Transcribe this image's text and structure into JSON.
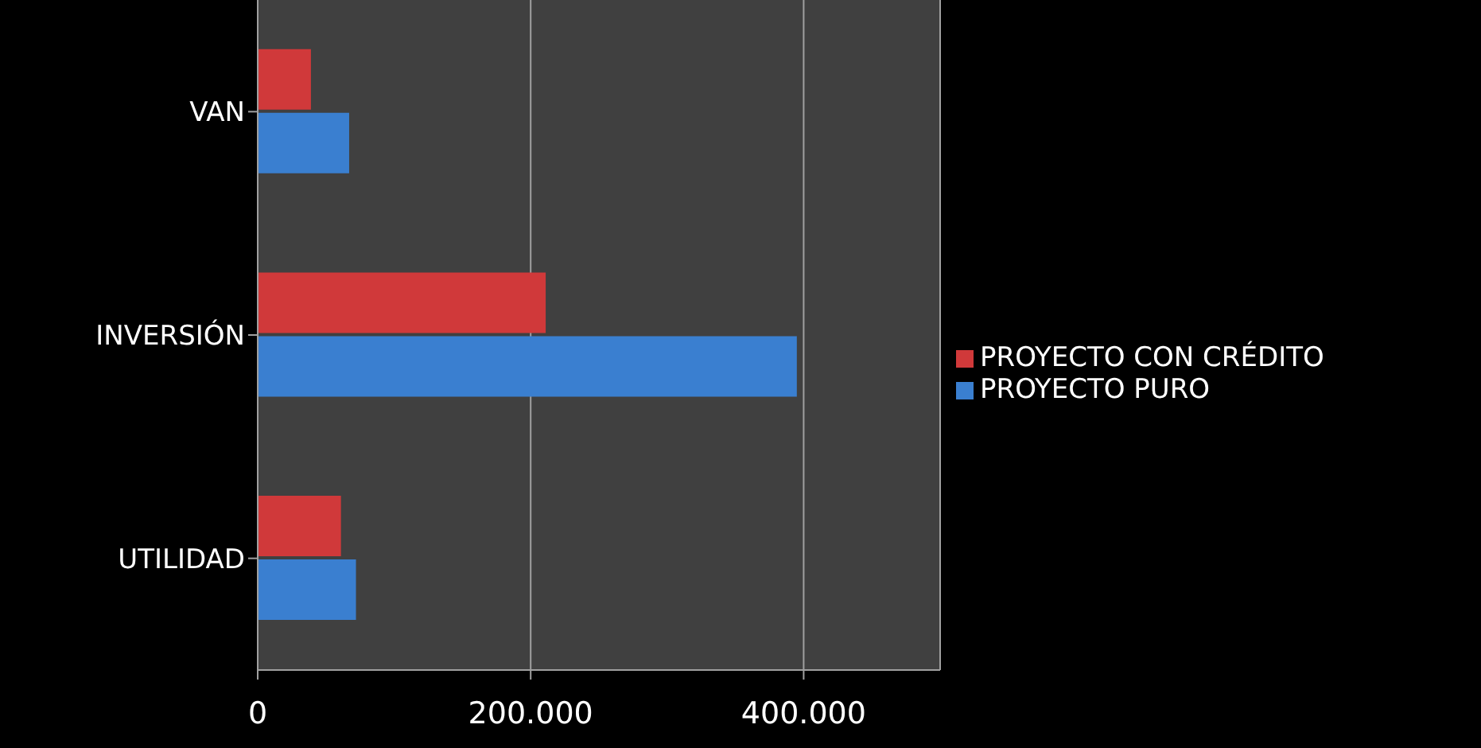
{
  "chart_data": {
    "type": "bar",
    "orientation": "horizontal",
    "categories": [
      "VAN",
      "INVERSIÓN",
      "UTILIDAD"
    ],
    "series": [
      {
        "name": "PROYECTO CON CRÉDITO",
        "color": "#d0393a",
        "values": [
          39000,
          211000,
          61000
        ]
      },
      {
        "name": "PROYECTO PURO",
        "color": "#3a7fd0",
        "values": [
          67000,
          395000,
          72000
        ]
      }
    ],
    "xlim": [
      0,
      500000
    ],
    "xticks": [
      0,
      {
        "value": 200000,
        "label": "200.000"
      },
      {
        "value": 400000,
        "label": "400.000"
      }
    ],
    "grid": "x",
    "legend": "right"
  }
}
